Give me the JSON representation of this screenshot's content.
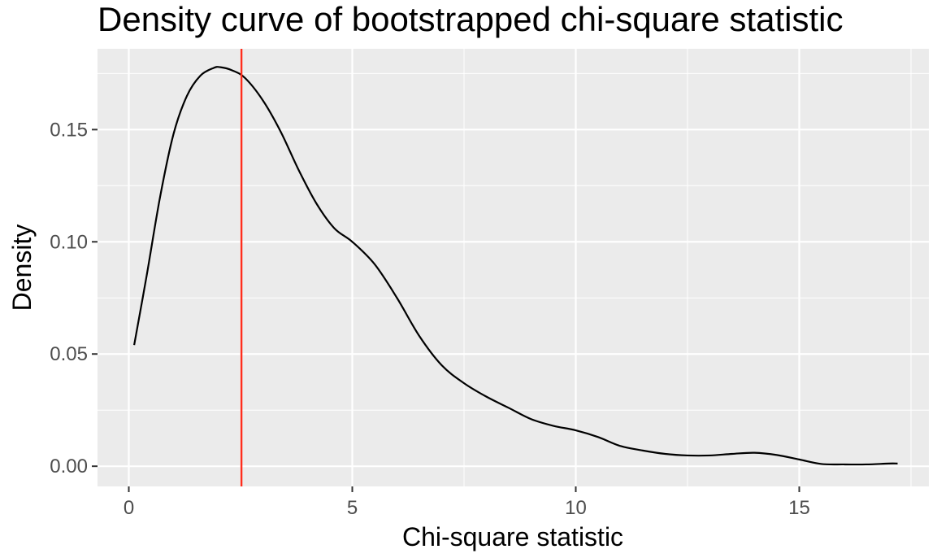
{
  "chart_data": {
    "type": "line",
    "title": "Density curve of bootstrapped chi-square statistic",
    "xlabel": "Chi-square statistic",
    "ylabel": "Density",
    "xlim": [
      -0.7,
      17.9
    ],
    "ylim": [
      -0.009,
      0.186
    ],
    "x_ticks": [
      0,
      5,
      10,
      15
    ],
    "x_tick_labels": [
      "0",
      "5",
      "10",
      "15"
    ],
    "y_ticks": [
      0.0,
      0.05,
      0.1,
      0.15
    ],
    "y_tick_labels": [
      "0.00",
      "0.05",
      "0.10",
      "0.15"
    ],
    "grid": true,
    "colors": {
      "panel_background": "#ebebeb",
      "grid": "#ffffff",
      "density_line": "#000000",
      "reference_line": "#ff2d1c"
    },
    "series": [
      {
        "x": [
          0.12,
          0.4,
          0.7,
          1.0,
          1.3,
          1.6,
          1.9,
          2.05,
          2.3,
          2.6,
          3.0,
          3.4,
          3.8,
          4.2,
          4.6,
          5.0,
          5.5,
          6.0,
          6.5,
          7.0,
          7.5,
          8.0,
          8.5,
          9.0,
          9.5,
          10.0,
          10.5,
          11.0,
          11.5,
          12.0,
          12.5,
          13.0,
          13.5,
          14.0,
          14.5,
          15.0,
          15.5,
          16.0,
          16.5,
          17.0,
          17.2
        ],
        "values": [
          0.054,
          0.085,
          0.12,
          0.148,
          0.165,
          0.174,
          0.1775,
          0.1778,
          0.1765,
          0.173,
          0.163,
          0.149,
          0.132,
          0.117,
          0.106,
          0.1,
          0.09,
          0.075,
          0.058,
          0.045,
          0.037,
          0.031,
          0.026,
          0.021,
          0.018,
          0.016,
          0.013,
          0.009,
          0.007,
          0.0055,
          0.0048,
          0.0048,
          0.0055,
          0.006,
          0.005,
          0.003,
          0.001,
          0.0008,
          0.0008,
          0.0012,
          0.0012
        ]
      }
    ],
    "vline": {
      "x": 2.52
    }
  }
}
